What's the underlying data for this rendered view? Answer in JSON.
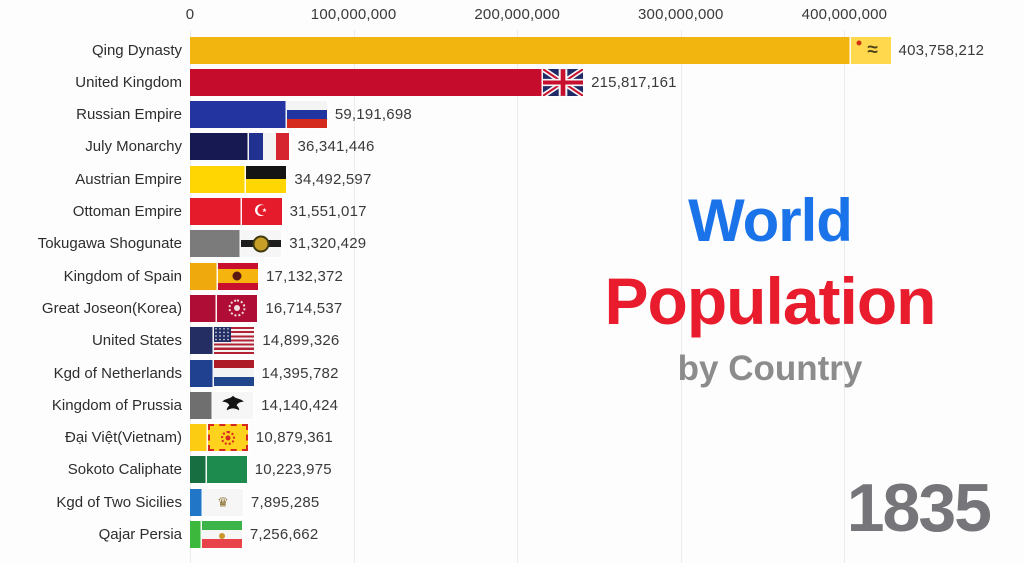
{
  "title": {
    "line1": "World",
    "line1_color": "#1a73e8",
    "line2": "Population",
    "line2_color": "#e81c2c",
    "line3": "by Country",
    "line3_color": "#8c8c8c"
  },
  "year": "1835",
  "year_color": "#76767a",
  "chart_data": {
    "type": "bar",
    "orientation": "horizontal",
    "title": "World Population by Country",
    "year": "1835",
    "x_axis": {
      "gridlines": true,
      "max": 450000000,
      "ticks": [
        {
          "value": 0,
          "label": "0"
        },
        {
          "value": 100000000,
          "label": "100,000,000"
        },
        {
          "value": 200000000,
          "label": "200,000,000"
        },
        {
          "value": 300000000,
          "label": "300,000,000"
        },
        {
          "value": 400000000,
          "label": "400,000,000"
        }
      ]
    },
    "categories": [
      "Qing Dynasty",
      "United Kingdom",
      "Russian Empire",
      "July Monarchy",
      "Austrian Empire",
      "Ottoman Empire",
      "Tokugawa Shogunate",
      "Kingdom of Spain",
      "Great Joseon(Korea)",
      "United States",
      "Kgd of Netherlands",
      "Kingdom of Prussia",
      "Đại Việt(Vietnam)",
      "Sokoto Caliphate",
      "Kgd of Two Sicilies",
      "Qajar Persia"
    ],
    "values": [
      403758212,
      215817161,
      59191698,
      36341446,
      34492597,
      31551017,
      31320429,
      17132372,
      16714537,
      14899326,
      14395782,
      14140424,
      10879361,
      10223975,
      7895285,
      7256662
    ],
    "rows": [
      {
        "label": "Qing Dynasty",
        "value": 403758212,
        "display": "403,758,212",
        "bar_color": "#f2b40e",
        "flag": {
          "kind": "solid",
          "bg": "#ffd84d",
          "emblems": [
            {
              "t": "char",
              "char": "≈",
              "color": "#4c4418",
              "size": 19,
              "x": 55,
              "y": 50,
              "bold": true
            },
            {
              "t": "circle",
              "color": "#d03512",
              "size": 5,
              "x": 22,
              "y": 24
            }
          ]
        }
      },
      {
        "label": "United Kingdom",
        "value": 215817161,
        "display": "215,817,161",
        "bar_color": "#c60c2c",
        "flag": {
          "kind": "uk",
          "navy": "#1f2a66",
          "white": "#f6f6f6",
          "red": "#C8102E"
        }
      },
      {
        "label": "Russian Empire",
        "value": 59191698,
        "display": "59,191,698",
        "bar_color": "#2333a0",
        "flag": {
          "kind": "h",
          "stripes": [
            {
              "c": "#f4f4f4",
              "w": 1
            },
            {
              "c": "#2135a0",
              "w": 1
            },
            {
              "c": "#d52b1e",
              "w": 1
            }
          ]
        }
      },
      {
        "label": "July Monarchy",
        "value": 36341446,
        "display": "36,341,446",
        "bar_color": "#171a52",
        "flag": {
          "kind": "v",
          "stripes": [
            {
              "c": "#20318f",
              "w": 1
            },
            {
              "c": "#f4f4f4",
              "w": 1
            },
            {
              "c": "#d6252e",
              "w": 1
            }
          ]
        }
      },
      {
        "label": "Austrian Empire",
        "value": 34492597,
        "display": "34,492,597",
        "bar_color": "#ffd502",
        "flag": {
          "kind": "h",
          "stripes": [
            {
              "c": "#141414",
              "w": 1
            },
            {
              "c": "#ffd502",
              "w": 1
            }
          ]
        }
      },
      {
        "label": "Ottoman Empire",
        "value": 31551017,
        "display": "31,551,017",
        "bar_color": "#e51b2c",
        "flag": {
          "kind": "solid",
          "bg": "#e51b2c",
          "emblems": [
            {
              "t": "char",
              "char": "☪",
              "color": "#ffffff",
              "size": 16,
              "x": 48,
              "y": 50
            }
          ]
        }
      },
      {
        "label": "Tokugawa Shogunate",
        "value": 31320429,
        "display": "31,320,429",
        "bar_color": "#7b7b7b",
        "flag": {
          "kind": "solid",
          "bg": "#f6f6f6",
          "emblems": [
            {
              "t": "band",
              "color": "#1c1c1c",
              "h": 26
            },
            {
              "t": "circle",
              "color": "#c79f27",
              "size": 17,
              "x": 50,
              "y": 50,
              "ring": "#3f3a10"
            }
          ]
        }
      },
      {
        "label": "Kingdom of Spain",
        "value": 17132372,
        "display": "17,132,372",
        "bar_color": "#efa90d",
        "flag": {
          "kind": "h",
          "stripes": [
            {
              "c": "#c8102e",
              "w": 1
            },
            {
              "c": "#f6b40e",
              "w": 2
            },
            {
              "c": "#c8102e",
              "w": 1
            }
          ],
          "emblems": [
            {
              "t": "circle",
              "color": "#5a1a14",
              "size": 9,
              "x": 48,
              "y": 50
            }
          ]
        }
      },
      {
        "label": "Great Joseon(Korea)",
        "value": 16714537,
        "display": "16,714,537",
        "bar_color": "#b00d36",
        "flag": {
          "kind": "solid",
          "bg": "#b00d36",
          "emblems": [
            {
              "t": "ring",
              "color": "#f0dede",
              "size": 17,
              "x": 50,
              "y": 50
            },
            {
              "t": "circle",
              "color": "#f0dede",
              "size": 6,
              "x": 50,
              "y": 50
            }
          ]
        }
      },
      {
        "label": "United States",
        "value": 14899326,
        "display": "14,899,326",
        "bar_color": "#252e63",
        "flag": {
          "kind": "us",
          "red": "#B22234",
          "white": "#f4f4f4",
          "navy": "#232e66"
        }
      },
      {
        "label": "Kgd of Netherlands",
        "value": 14395782,
        "display": "14,395,782",
        "bar_color": "#1f418f",
        "flag": {
          "kind": "h",
          "stripes": [
            {
              "c": "#AE1C28",
              "w": 1
            },
            {
              "c": "#f4f4f4",
              "w": 1
            },
            {
              "c": "#21468B",
              "w": 1
            }
          ]
        }
      },
      {
        "label": "Kingdom of Prussia",
        "value": 14140424,
        "display": "14,140,424",
        "bar_color": "#6f6f6f",
        "flag": {
          "kind": "solid",
          "bg": "#f6f6f6",
          "emblems": [
            {
              "t": "eagle",
              "color": "#141414",
              "size": 24,
              "x": 50,
              "y": 50
            }
          ]
        }
      },
      {
        "label": "Đại Việt(Vietnam)",
        "value": 10879361,
        "display": "10,879,361",
        "bar_color": "#fccc12",
        "flag": {
          "kind": "solid",
          "bg": "#ffd21e",
          "border_color": "#d6281e",
          "emblems": [
            {
              "t": "ring",
              "color": "#d6281e",
              "size": 14,
              "x": 50,
              "y": 50
            },
            {
              "t": "circle",
              "color": "#d6281e",
              "size": 5,
              "x": 50,
              "y": 50
            }
          ]
        }
      },
      {
        "label": "Sokoto Caliphate",
        "value": 10223975,
        "display": "10,223,975",
        "bar_color": "#176e41",
        "flag": {
          "kind": "solid",
          "bg": "#1d8a4e"
        }
      },
      {
        "label": "Kgd of Two Sicilies",
        "value": 7895285,
        "display": "7,895,285",
        "bar_color": "#2176c7",
        "flag": {
          "kind": "solid",
          "bg": "#f6f6f6",
          "emblems": [
            {
              "t": "char",
              "char": "♛",
              "color": "#8a7030",
              "size": 13,
              "x": 50,
              "y": 50
            }
          ]
        }
      },
      {
        "label": "Qajar Persia",
        "value": 7256662,
        "display": "7,256,662",
        "bar_color": "#3cb83c",
        "flag": {
          "kind": "h",
          "stripes": [
            {
              "c": "#3cb44a",
              "w": 1
            },
            {
              "c": "#f6f6f6",
              "w": 1.1
            },
            {
              "c": "#e8434a",
              "w": 1
            }
          ],
          "emblems": [
            {
              "t": "circle",
              "color": "#c9972b",
              "size": 6,
              "x": 50,
              "y": 54
            }
          ]
        }
      }
    ]
  }
}
